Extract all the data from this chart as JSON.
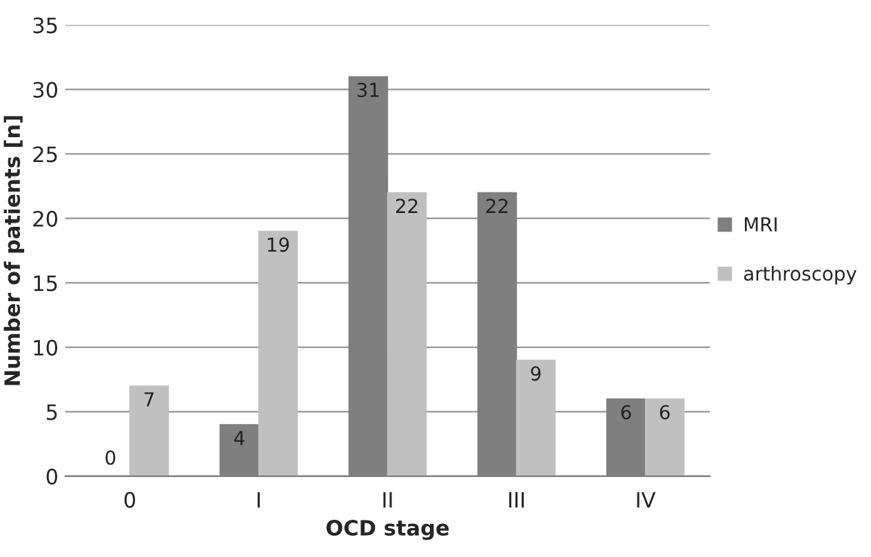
{
  "chart_data": {
    "type": "bar",
    "xlabel": "OCD stage",
    "ylabel": "Number of patients [n]",
    "categories": [
      "0",
      "I",
      "II",
      "III",
      "IV"
    ],
    "series": [
      {
        "name": "MRI",
        "color": "#7f7f7f",
        "values": [
          0,
          4,
          31,
          22,
          6
        ]
      },
      {
        "name": "arthroscopy",
        "color": "#c0c0c0",
        "values": [
          7,
          19,
          22,
          9,
          6
        ]
      }
    ],
    "ylim": [
      0,
      35
    ],
    "yticks": [
      0,
      5,
      10,
      15,
      20,
      25,
      30,
      35
    ],
    "grid": "y",
    "legend": "right",
    "data_labels": true
  }
}
